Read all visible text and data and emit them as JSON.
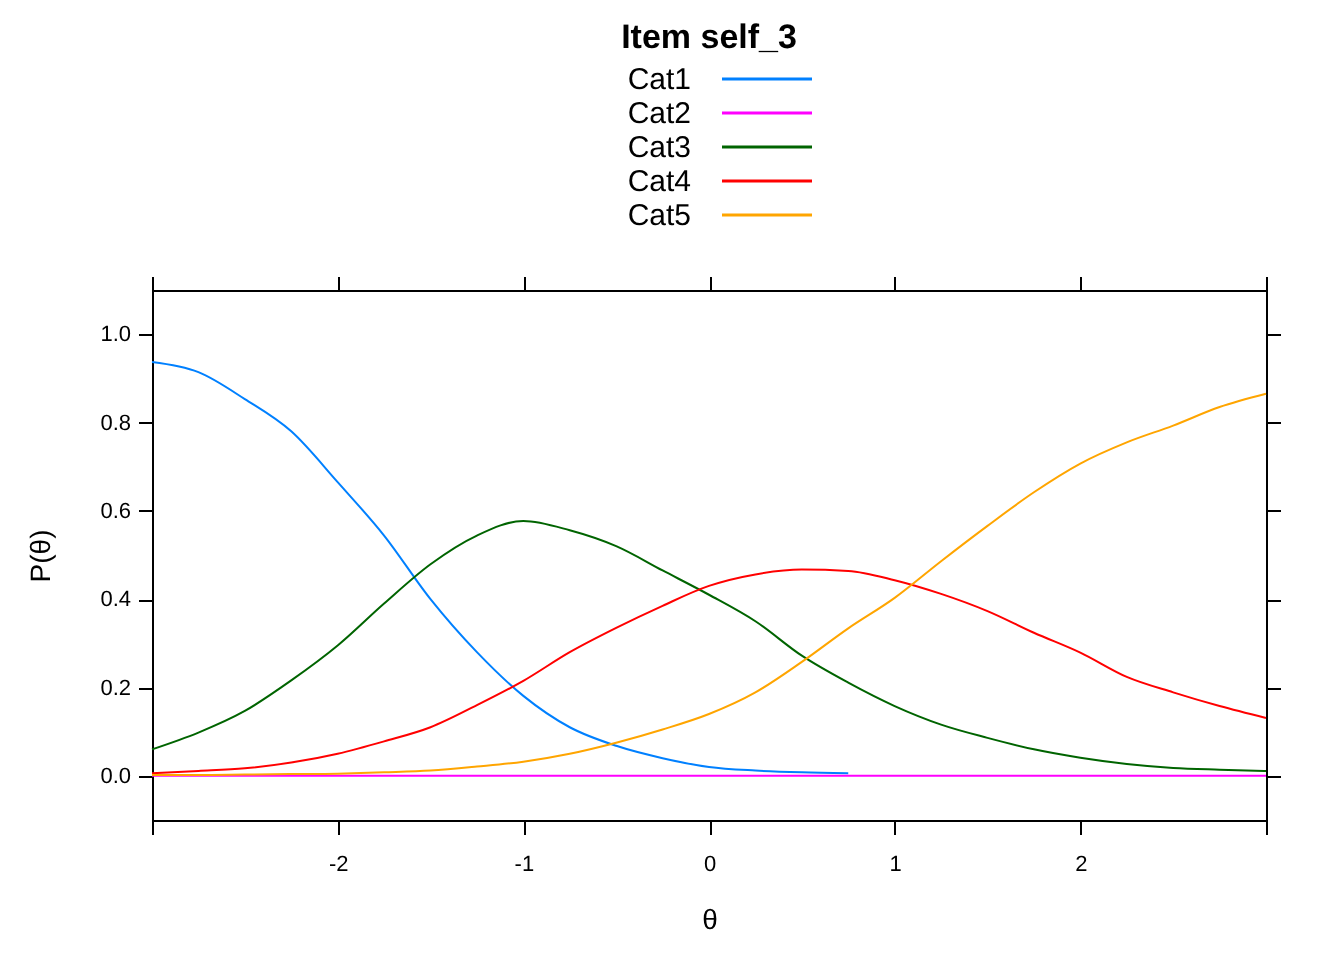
{
  "chart_data": {
    "type": "line",
    "title": "Item self_3",
    "xlabel": "θ",
    "ylabel": "P(θ)",
    "legend": "top",
    "x": [
      -3,
      -2.75,
      -2.5,
      -2.25,
      -2,
      -1.75,
      -1.5,
      -1.25,
      -1,
      -0.75,
      -0.5,
      -0.25,
      0,
      0.25,
      0.5,
      0.75,
      1,
      1.25,
      1.5,
      1.75,
      2,
      2.25,
      2.5,
      2.75,
      3
    ],
    "xlim": [
      -3,
      3
    ],
    "ylim": [
      -0.1,
      1.1
    ],
    "xticks": [
      {
        "value": -3,
        "label": null
      },
      -2,
      -1,
      0,
      1,
      2,
      {
        "value": 3,
        "label": null
      }
    ],
    "yticks": [
      {
        "value": 0,
        "label": "0.0"
      },
      {
        "value": 0.2,
        "label": "0.2"
      },
      {
        "value": 0.4,
        "label": "0.4"
      },
      {
        "value": 0.6,
        "label": "0.6"
      },
      {
        "value": 0.8,
        "label": "0.8"
      },
      {
        "value": 1,
        "label": "1.0"
      }
    ],
    "series": [
      {
        "name": "Cat1",
        "color": "#0080ff",
        "values": [
          0.937,
          0.914,
          0.853,
          0.78,
          0.665,
          0.544,
          0.4,
          0.28,
          0.181,
          0.11,
          0.068,
          0.04,
          0.02,
          0.012,
          0.008,
          0.006,
          null,
          null,
          null,
          null,
          null,
          null,
          null,
          null,
          null
        ]
      },
      {
        "name": "Cat2",
        "color": "#ff00ff",
        "values": [
          0,
          0,
          0,
          0,
          0,
          0,
          0,
          0,
          0,
          0,
          0,
          0,
          0,
          0,
          0,
          0,
          0,
          0,
          0,
          0,
          0,
          0,
          0,
          0,
          0
        ]
      },
      {
        "name": "Cat3",
        "color": "#006400",
        "values": [
          0.06,
          0.098,
          0.147,
          0.216,
          0.295,
          0.39,
          0.479,
          0.544,
          0.577,
          0.556,
          0.52,
          0.465,
          0.41,
          0.35,
          0.272,
          0.211,
          0.158,
          0.116,
          0.086,
          0.06,
          0.041,
          0.027,
          0.018,
          0.014,
          0.011
        ]
      },
      {
        "name": "Cat4",
        "color": "#ff0000",
        "values": [
          0.006,
          0.011,
          0.017,
          0.03,
          0.05,
          0.078,
          0.11,
          0.16,
          0.215,
          0.28,
          0.335,
          0.385,
          0.43,
          0.456,
          0.467,
          0.464,
          0.443,
          0.412,
          0.373,
          0.324,
          0.279,
          0.224,
          0.189,
          0.158,
          0.131
        ]
      },
      {
        "name": "Cat5",
        "color": "#ffa500",
        "values": [
          0.002,
          0.002,
          0.003,
          0.004,
          0.005,
          0.008,
          0.012,
          0.021,
          0.032,
          0.05,
          0.075,
          0.105,
          0.14,
          0.189,
          0.258,
          0.334,
          0.403,
          0.486,
          0.566,
          0.642,
          0.707,
          0.755,
          0.793,
          0.835,
          0.865
        ]
      }
    ]
  }
}
